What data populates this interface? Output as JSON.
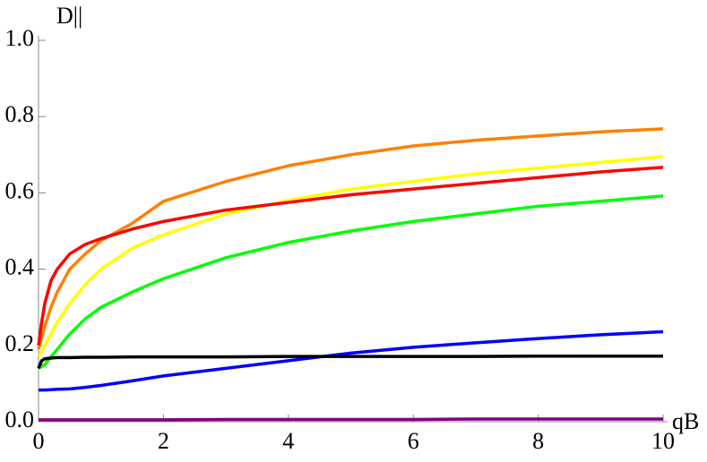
{
  "chart_data": {
    "type": "line",
    "y_label": "D||",
    "x_label": "qB",
    "x": [
      0,
      0.05,
      0.1,
      0.2,
      0.3,
      0.5,
      0.75,
      1,
      1.5,
      2,
      3,
      4,
      5,
      6,
      7,
      8,
      9,
      10
    ],
    "series": [
      {
        "color": "#ff8000",
        "values": [
          0.19,
          0.22,
          0.25,
          0.3,
          0.34,
          0.4,
          0.44,
          0.475,
          0.52,
          0.578,
          0.63,
          0.671,
          0.7,
          0.723,
          0.738,
          0.749,
          0.76,
          0.768
        ]
      },
      {
        "color": "#ffff00",
        "values": [
          0.17,
          0.185,
          0.2,
          0.23,
          0.26,
          0.31,
          0.36,
          0.4,
          0.455,
          0.49,
          0.545,
          0.58,
          0.61,
          0.63,
          0.65,
          0.665,
          0.68,
          0.695
        ]
      },
      {
        "color": "#ff0000",
        "values": [
          0.2,
          0.26,
          0.31,
          0.37,
          0.4,
          0.44,
          0.465,
          0.48,
          0.505,
          0.525,
          0.555,
          0.575,
          0.595,
          0.61,
          0.625,
          0.64,
          0.655,
          0.667
        ]
      },
      {
        "color": "#00ff00",
        "values": [
          0.14,
          0.145,
          0.15,
          0.17,
          0.19,
          0.23,
          0.27,
          0.3,
          0.34,
          0.375,
          0.43,
          0.47,
          0.5,
          0.525,
          0.545,
          0.565,
          0.578,
          0.592
        ]
      },
      {
        "color": "#0000ff",
        "values": [
          0.083,
          0.083,
          0.083,
          0.084,
          0.085,
          0.086,
          0.09,
          0.095,
          0.107,
          0.12,
          0.14,
          0.16,
          0.18,
          0.195,
          0.207,
          0.218,
          0.228,
          0.236
        ]
      },
      {
        "color": "#000000",
        "values": [
          0.14,
          0.16,
          0.165,
          0.167,
          0.168,
          0.168,
          0.169,
          0.169,
          0.17,
          0.17,
          0.17,
          0.171,
          0.171,
          0.171,
          0.171,
          0.172,
          0.172,
          0.172
        ]
      },
      {
        "color": "#800080",
        "values": [
          0.005,
          0.005,
          0.005,
          0.005,
          0.005,
          0.005,
          0.005,
          0.005,
          0.005,
          0.005,
          0.006,
          0.006,
          0.006,
          0.006,
          0.007,
          0.007,
          0.007,
          0.007
        ]
      }
    ],
    "xlim": [
      0,
      10
    ],
    "xticks": [
      0,
      2,
      4,
      6,
      8,
      10
    ],
    "ylim": [
      0,
      1
    ],
    "yticks": [
      {
        "value": 0,
        "label": "0.0"
      },
      0.2,
      0.4,
      0.6,
      0.8,
      {
        "value": 1,
        "label": "1.0"
      }
    ],
    "grid": false
  }
}
